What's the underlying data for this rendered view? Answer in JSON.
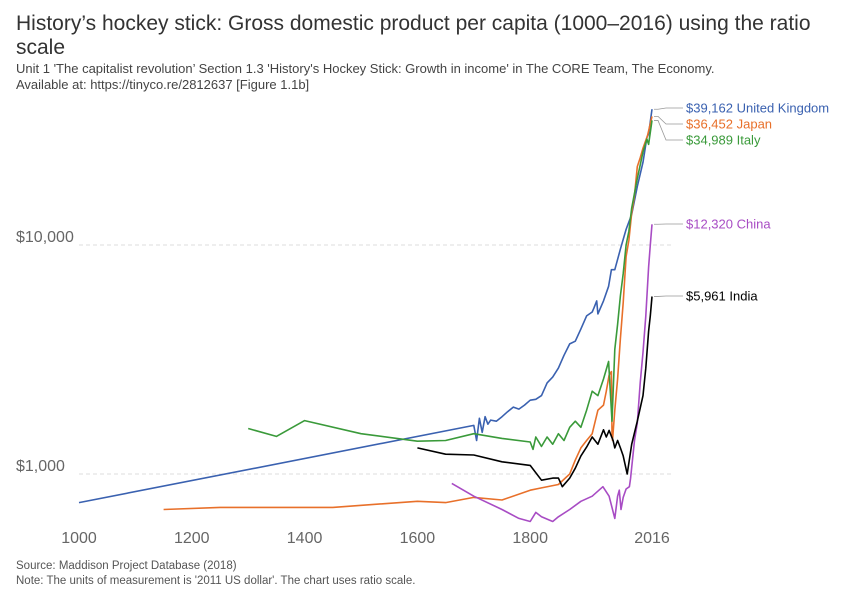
{
  "title": "History’s hockey stick: Gross domestic product per capita (1000–2016) using the ratio scale",
  "subtitle_line1": "Unit 1 'The capitalist revolution’ Section 1.3 'History's Hockey Stick: Growth in income' in The CORE Team, The Economy.",
  "subtitle_line2": "Available at: https://tinyco.re/2812637 [Figure 1.1b]",
  "source": "Source: Maddison Project Database (2018)",
  "note": "Note: The units of measurement is '2011 US dollar'. The chart uses ratio scale.",
  "chart_data": {
    "type": "line",
    "title": "History’s hockey stick: Gross domestic product per capita (1000–2016) using the ratio scale",
    "xlabel": "",
    "ylabel": "",
    "xlim": [
      1000,
      2030
    ],
    "ylim": [
      560,
      51000
    ],
    "yscale": "log",
    "x_ticks": [
      1000,
      1200,
      1400,
      1600,
      1800,
      2016
    ],
    "x_tick_labels": [
      "1000",
      "1200",
      "1400",
      "1600",
      "1800",
      "2016"
    ],
    "y_ticks": [
      1000,
      10000
    ],
    "y_tick_labels": [
      "$1,000",
      "$10,000"
    ],
    "grid": "horizontal dashed",
    "legend": "end-of-line labels",
    "series": [
      {
        "name": "United Kingdom",
        "end_label": "$39,162 United Kingdom",
        "color": "#3a61b0",
        "points": [
          [
            1000,
            750
          ],
          [
            1700,
            1630
          ],
          [
            1705,
            1400
          ],
          [
            1710,
            1750
          ],
          [
            1715,
            1520
          ],
          [
            1720,
            1780
          ],
          [
            1725,
            1650
          ],
          [
            1730,
            1720
          ],
          [
            1740,
            1700
          ],
          [
            1750,
            1780
          ],
          [
            1760,
            1870
          ],
          [
            1770,
            1960
          ],
          [
            1780,
            1920
          ],
          [
            1790,
            2000
          ],
          [
            1800,
            2100
          ],
          [
            1810,
            2120
          ],
          [
            1820,
            2200
          ],
          [
            1830,
            2500
          ],
          [
            1840,
            2650
          ],
          [
            1850,
            2900
          ],
          [
            1860,
            3300
          ],
          [
            1870,
            3700
          ],
          [
            1880,
            3800
          ],
          [
            1890,
            4300
          ],
          [
            1900,
            4900
          ],
          [
            1910,
            5100
          ],
          [
            1913,
            5300
          ],
          [
            1918,
            5700
          ],
          [
            1920,
            5000
          ],
          [
            1930,
            5700
          ],
          [
            1939,
            6600
          ],
          [
            1944,
            7800
          ],
          [
            1950,
            7800
          ],
          [
            1960,
            9600
          ],
          [
            1970,
            11700
          ],
          [
            1980,
            13600
          ],
          [
            1990,
            18000
          ],
          [
            2000,
            23000
          ],
          [
            2007,
            29500
          ],
          [
            2010,
            30500
          ],
          [
            2016,
            39162
          ]
        ]
      },
      {
        "name": "Japan",
        "end_label": "$36,452 Japan",
        "color": "#e8702a",
        "points": [
          [
            1150,
            700
          ],
          [
            1250,
            715
          ],
          [
            1450,
            715
          ],
          [
            1600,
            760
          ],
          [
            1650,
            750
          ],
          [
            1700,
            790
          ],
          [
            1750,
            770
          ],
          [
            1800,
            850
          ],
          [
            1820,
            870
          ],
          [
            1850,
            900
          ],
          [
            1870,
            1000
          ],
          [
            1880,
            1150
          ],
          [
            1890,
            1300
          ],
          [
            1900,
            1400
          ],
          [
            1910,
            1500
          ],
          [
            1920,
            1900
          ],
          [
            1930,
            2000
          ],
          [
            1935,
            2300
          ],
          [
            1940,
            2700
          ],
          [
            1944,
            2800
          ],
          [
            1945,
            1500
          ],
          [
            1946,
            1400
          ],
          [
            1950,
            1900
          ],
          [
            1955,
            2600
          ],
          [
            1960,
            3900
          ],
          [
            1965,
            5600
          ],
          [
            1970,
            8900
          ],
          [
            1975,
            10500
          ],
          [
            1980,
            13800
          ],
          [
            1985,
            16500
          ],
          [
            1990,
            22000
          ],
          [
            1995,
            24000
          ],
          [
            2000,
            26500
          ],
          [
            2008,
            30000
          ],
          [
            2016,
            36452
          ]
        ]
      },
      {
        "name": "Italy",
        "end_label": "$34,989 Italy",
        "color": "#3a9a3a",
        "points": [
          [
            1300,
            1580
          ],
          [
            1350,
            1460
          ],
          [
            1400,
            1710
          ],
          [
            1500,
            1500
          ],
          [
            1600,
            1390
          ],
          [
            1650,
            1400
          ],
          [
            1700,
            1500
          ],
          [
            1750,
            1430
          ],
          [
            1800,
            1380
          ],
          [
            1805,
            1280
          ],
          [
            1810,
            1450
          ],
          [
            1820,
            1320
          ],
          [
            1830,
            1450
          ],
          [
            1840,
            1350
          ],
          [
            1850,
            1500
          ],
          [
            1860,
            1400
          ],
          [
            1870,
            1600
          ],
          [
            1880,
            1700
          ],
          [
            1890,
            1600
          ],
          [
            1900,
            1900
          ],
          [
            1910,
            2300
          ],
          [
            1920,
            2200
          ],
          [
            1930,
            2600
          ],
          [
            1939,
            3100
          ],
          [
            1945,
            1700
          ],
          [
            1950,
            3500
          ],
          [
            1955,
            4500
          ],
          [
            1960,
            6000
          ],
          [
            1965,
            7500
          ],
          [
            1970,
            10000
          ],
          [
            1975,
            11500
          ],
          [
            1980,
            14500
          ],
          [
            1990,
            19500
          ],
          [
            2000,
            25500
          ],
          [
            2007,
            29000
          ],
          [
            2010,
            27500
          ],
          [
            2016,
            34989
          ]
        ]
      },
      {
        "name": "China",
        "end_label": "$12,320 China",
        "color": "#a84cc4",
        "points": [
          [
            1661,
            910
          ],
          [
            1700,
            800
          ],
          [
            1750,
            700
          ],
          [
            1780,
            640
          ],
          [
            1800,
            620
          ],
          [
            1810,
            680
          ],
          [
            1820,
            650
          ],
          [
            1840,
            620
          ],
          [
            1850,
            650
          ],
          [
            1870,
            700
          ],
          [
            1890,
            760
          ],
          [
            1910,
            800
          ],
          [
            1929,
            880
          ],
          [
            1940,
            800
          ],
          [
            1950,
            640
          ],
          [
            1955,
            800
          ],
          [
            1958,
            850
          ],
          [
            1961,
            700
          ],
          [
            1965,
            790
          ],
          [
            1970,
            860
          ],
          [
            1976,
            880
          ],
          [
            1978,
            960
          ],
          [
            1985,
            1400
          ],
          [
            1990,
            1670
          ],
          [
            1995,
            2500
          ],
          [
            2000,
            3400
          ],
          [
            2005,
            4900
          ],
          [
            2010,
            8000
          ],
          [
            2013,
            10000
          ],
          [
            2016,
            12320
          ]
        ]
      },
      {
        "name": "India",
        "end_label": "$5,961 India",
        "color": "#000000",
        "points": [
          [
            1600,
            1300
          ],
          [
            1650,
            1220
          ],
          [
            1700,
            1210
          ],
          [
            1750,
            1130
          ],
          [
            1800,
            1090
          ],
          [
            1820,
            940
          ],
          [
            1840,
            960
          ],
          [
            1850,
            960
          ],
          [
            1857,
            880
          ],
          [
            1870,
            960
          ],
          [
            1880,
            1060
          ],
          [
            1890,
            1200
          ],
          [
            1900,
            1310
          ],
          [
            1910,
            1450
          ],
          [
            1920,
            1350
          ],
          [
            1930,
            1560
          ],
          [
            1935,
            1450
          ],
          [
            1940,
            1550
          ],
          [
            1947,
            1400
          ],
          [
            1950,
            1300
          ],
          [
            1955,
            1400
          ],
          [
            1960,
            1300
          ],
          [
            1965,
            1200
          ],
          [
            1970,
            1050
          ],
          [
            1972,
            1000
          ],
          [
            1980,
            1350
          ],
          [
            1990,
            1700
          ],
          [
            2000,
            2200
          ],
          [
            2005,
            2900
          ],
          [
            2010,
            4200
          ],
          [
            2013,
            4900
          ],
          [
            2016,
            5961
          ]
        ]
      }
    ]
  }
}
